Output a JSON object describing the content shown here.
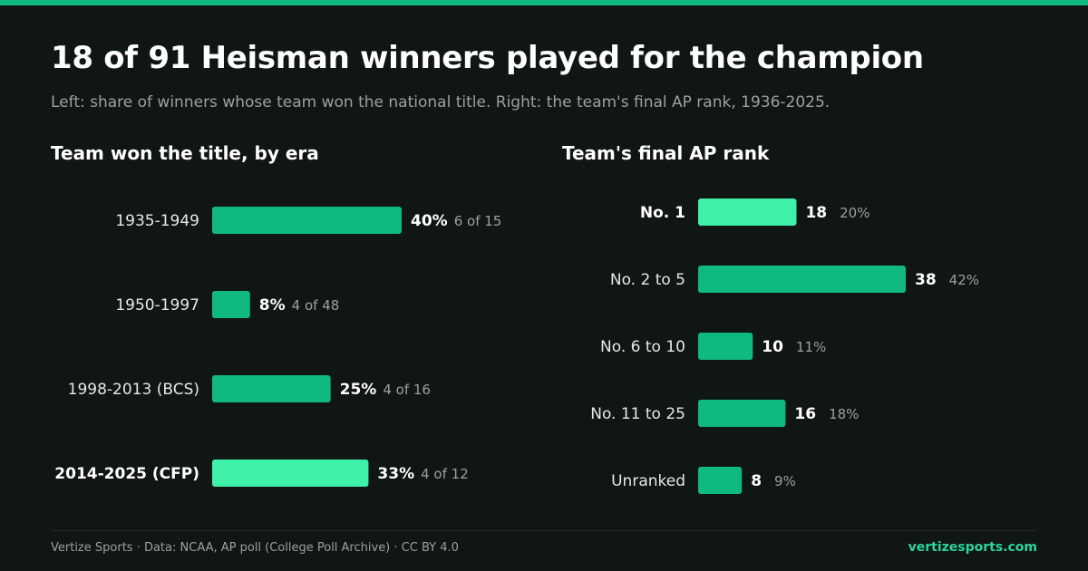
{
  "header": {
    "title": "18 of 91 Heisman winners played for the champion",
    "subtitle": "Left: share of winners whose team won the national title. Right: the team's final AP rank, 1936-2025."
  },
  "colors": {
    "background": "#0f1614",
    "accent": "#10b981",
    "highlight": "#3ff0a9",
    "muted_text": "#9aa19e",
    "link": "#2bd49a"
  },
  "chart_data": [
    {
      "type": "bar",
      "orientation": "horizontal",
      "title": "Team won the title, by era",
      "categories": [
        "1935-1949",
        "1950-1997",
        "1998-2013 (BCS)",
        "2014-2025 (CFP)"
      ],
      "values": [
        40,
        8,
        25,
        33
      ],
      "value_labels": [
        "40%",
        "8%",
        "25%",
        "33%"
      ],
      "notes": [
        "6 of 15",
        "4 of 48",
        "4 of 16",
        "4 of 12"
      ],
      "highlighted": [
        false,
        false,
        false,
        true
      ],
      "unit": "%",
      "xlim": [
        0,
        40
      ],
      "grid": false
    },
    {
      "type": "bar",
      "orientation": "horizontal",
      "title": "Team's final AP rank",
      "categories": [
        "No. 1",
        "No. 2 to 5",
        "No. 6 to 10",
        "No. 11 to 25",
        "Unranked"
      ],
      "values": [
        18,
        38,
        10,
        16,
        8
      ],
      "value_labels": [
        "18",
        "38",
        "10",
        "16",
        "8"
      ],
      "notes": [
        "20%",
        "42%",
        "11%",
        "18%",
        "9%"
      ],
      "highlighted": [
        true,
        false,
        false,
        false,
        false
      ],
      "xlim": [
        0,
        38
      ],
      "grid": false
    }
  ],
  "footer": {
    "source": "Vertize Sports · Data: NCAA, AP poll (College Poll Archive) · CC BY 4.0",
    "site": "vertizesports.com"
  }
}
